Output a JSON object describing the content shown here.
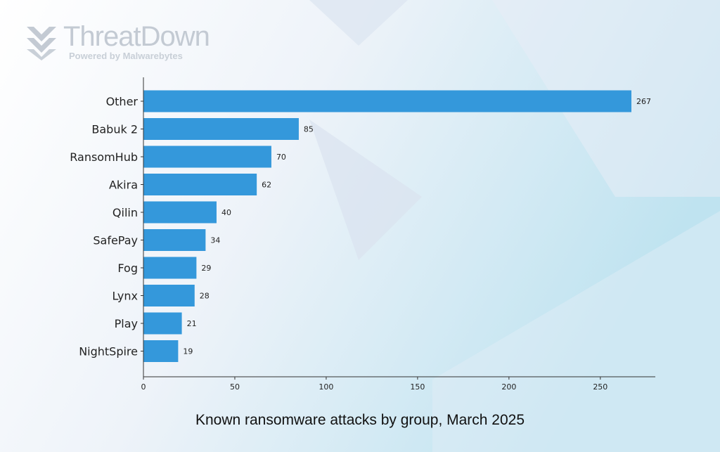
{
  "logo": {
    "brand": "ThreatDown",
    "tagline": "Powered by Malwarebytes"
  },
  "caption": "Known ransomware attacks by group, March 2025",
  "colors": {
    "bar": "#3498db",
    "axis": "#333333",
    "text": "#222222"
  },
  "chart_data": {
    "type": "bar",
    "orientation": "horizontal",
    "categories": [
      "Other",
      "Babuk 2",
      "RansomHub",
      "Akira",
      "Qilin",
      "SafePay",
      "Fog",
      "Lynx",
      "Play",
      "NightSpire"
    ],
    "values": [
      267,
      85,
      70,
      62,
      40,
      34,
      29,
      28,
      21,
      19
    ],
    "xlim": [
      0,
      280
    ],
    "xticks": [
      0,
      50,
      100,
      150,
      200,
      250
    ],
    "grid": false,
    "data_labels": true
  }
}
